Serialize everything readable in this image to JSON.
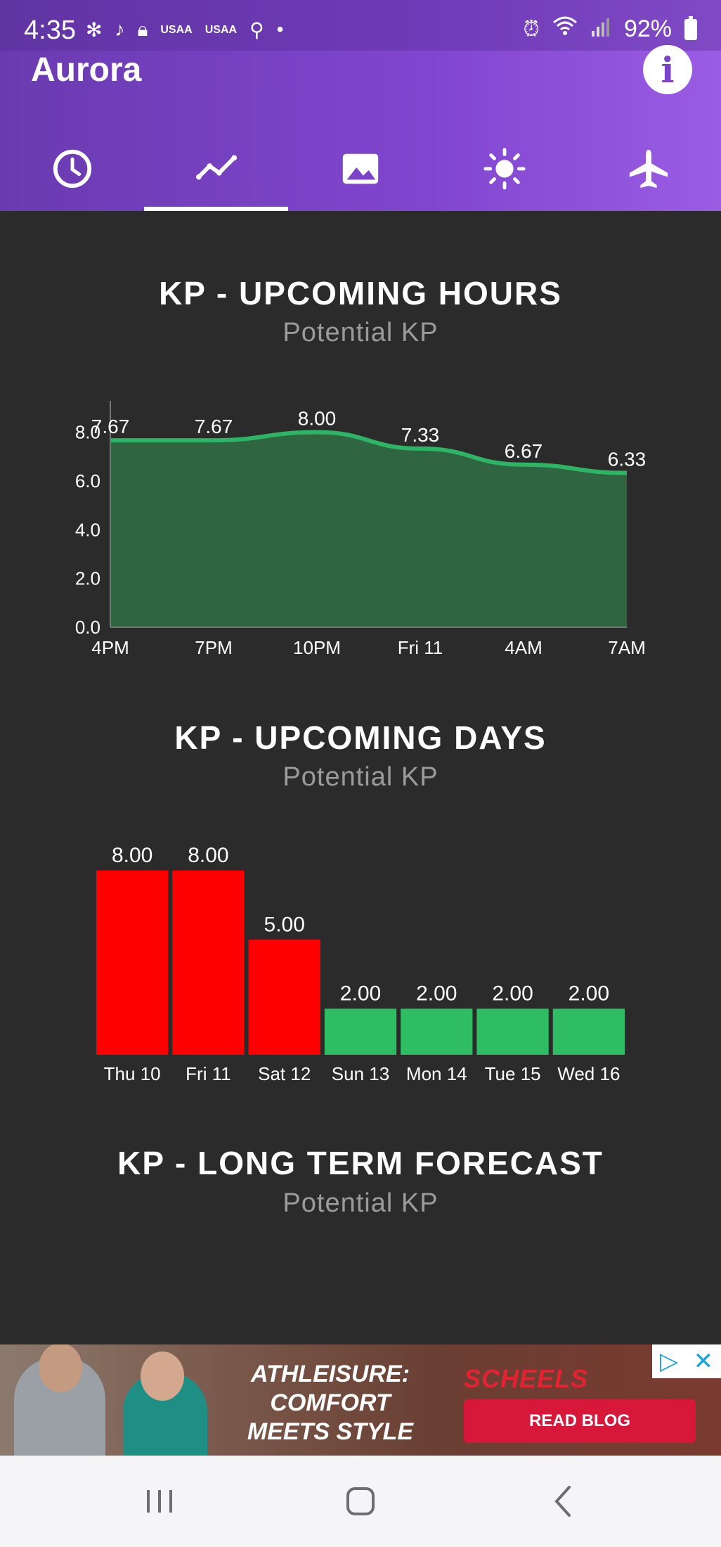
{
  "status_bar": {
    "time": "4:35",
    "battery": "92%",
    "left_icons": [
      "fan-icon",
      "tiktok-icon",
      "lock-icon",
      "usaa-icon",
      "usaa-icon",
      "location-icon",
      "dot-icon"
    ],
    "right_icons": [
      "alarm-icon",
      "wifi-icon",
      "signal-icon",
      "battery-icon"
    ],
    "usaa_label": "USAA"
  },
  "header": {
    "title": "Aurora",
    "info_label": "i",
    "tabs": [
      {
        "icon": "clock-icon",
        "active": false
      },
      {
        "icon": "line-chart-icon",
        "active": true
      },
      {
        "icon": "image-icon",
        "active": false
      },
      {
        "icon": "sun-icon",
        "active": false
      },
      {
        "icon": "airplane-icon",
        "active": false
      }
    ]
  },
  "sections": {
    "hours": {
      "title": "KP - UPCOMING HOURS",
      "subtitle": "Potential KP"
    },
    "days": {
      "title": "KP - UPCOMING DAYS",
      "subtitle": "Potential KP"
    },
    "long_term": {
      "title": "KP - LONG TERM FORECAST",
      "subtitle": "Potential KP"
    }
  },
  "chart_data": [
    {
      "type": "area",
      "categories": [
        "4PM",
        "7PM",
        "10PM",
        "Fri 11",
        "4AM",
        "7AM"
      ],
      "values": [
        7.67,
        7.67,
        8.0,
        7.33,
        6.67,
        6.33
      ],
      "value_labels": [
        "7.67",
        "7.67",
        "8.00",
        "7.33",
        "6.67",
        "6.33"
      ],
      "yticks": [
        "0.0",
        "2.0",
        "4.0",
        "6.0",
        "8.0"
      ],
      "ylim": [
        0,
        9
      ],
      "grid": false,
      "colors": {
        "line": "#2db464",
        "fill": "#2f6641",
        "text": "#ffffff"
      }
    },
    {
      "type": "bar",
      "categories": [
        "Thu 10",
        "Fri 11",
        "Sat 12",
        "Sun 13",
        "Mon 14",
        "Tue 15",
        "Wed 16"
      ],
      "values": [
        8.0,
        8.0,
        5.0,
        2.0,
        2.0,
        2.0,
        2.0
      ],
      "value_labels": [
        "8.00",
        "8.00",
        "5.00",
        "2.00",
        "2.00",
        "2.00",
        "2.00"
      ],
      "bar_colors": [
        "#ff0000",
        "#ff0000",
        "#ff0000",
        "#2ebd63",
        "#2ebd63",
        "#2ebd63",
        "#2ebd63"
      ],
      "ylim": [
        0,
        8
      ],
      "grid": false
    }
  ],
  "ad": {
    "headline_1": "ATHLEISURE:",
    "headline_2": "COMFORT",
    "headline_3": "MEETS STYLE",
    "brand": "SCHEELS",
    "cta": "READ BLOG"
  },
  "nav": {
    "icons": [
      "recent-apps-icon",
      "home-icon",
      "back-icon"
    ]
  }
}
